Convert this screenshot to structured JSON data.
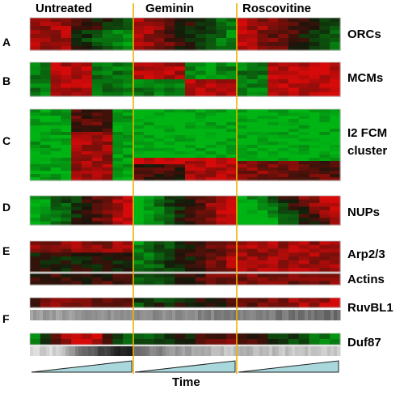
{
  "columns": [
    "Untreated",
    "Geminin",
    "Roscovitine"
  ],
  "panels": [
    {
      "letter": "A",
      "labels": [
        "ORCs"
      ]
    },
    {
      "letter": "B",
      "labels": [
        "MCMs"
      ]
    },
    {
      "letter": "C",
      "labels": [
        "I2 FCM",
        "cluster"
      ]
    },
    {
      "letter": "D",
      "labels": [
        "NUPs"
      ]
    },
    {
      "letter": "E",
      "labels": [
        "Arp2/3",
        "Actins"
      ]
    },
    {
      "letter": "F",
      "labels": [
        "RuvBL1",
        "Duf87"
      ]
    }
  ],
  "xaxis_label": "Time",
  "colors": {
    "red": "#cc1111",
    "green": "#11aa11",
    "black": "#1a0a0a",
    "divider": "#f0b000",
    "wedge": "#a8d8dc"
  }
}
